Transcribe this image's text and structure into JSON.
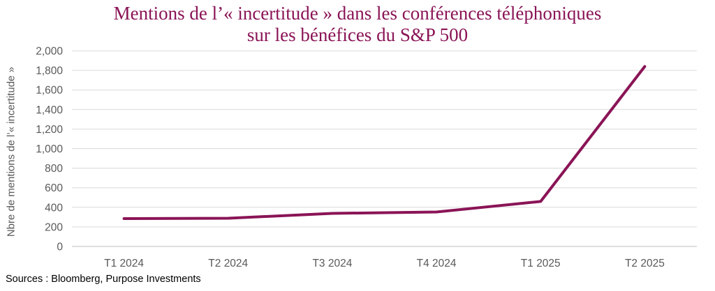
{
  "chart_data": {
    "type": "line",
    "title_lines": [
      "Mentions de l’« incertitude » dans les conférences téléphoniques",
      "sur les bénéfices du S&P 500"
    ],
    "ylabel": "Nbre de mentions de l’« incertitude »",
    "xlabel": "",
    "categories": [
      "T1 2024",
      "T2 2024",
      "T3 2024",
      "T4 2024",
      "T1 2025",
      "T2 2025"
    ],
    "series": [
      {
        "name": "",
        "values": [
          285,
          288,
          338,
          352,
          460,
          1840
        ],
        "color": "#8a1456"
      }
    ],
    "ylim": [
      0,
      2000
    ],
    "ytick_values": [
      0,
      200,
      400,
      600,
      800,
      1000,
      1200,
      1400,
      1600,
      1800,
      2000
    ],
    "ytick_labels": [
      "0",
      "200",
      "400",
      "600",
      "800",
      "1,000",
      "1,200",
      "1,400",
      "1,600",
      "1,800",
      "2,000"
    ],
    "grid": true,
    "legend": "none",
    "source": "Sources : Bloomberg, Purpose Investments"
  }
}
